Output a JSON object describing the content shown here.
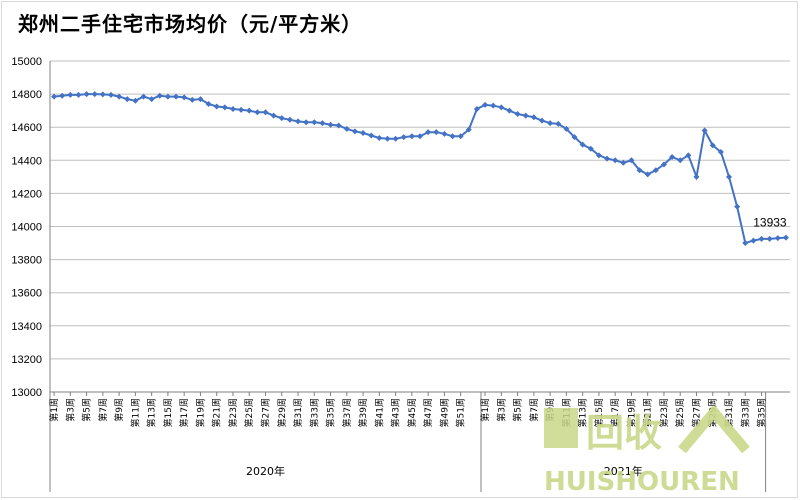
{
  "chart_data": {
    "type": "line",
    "title": "郑州二手住宅市场均价（元/平方米）",
    "ylim": [
      13000,
      15000
    ],
    "yticks": [
      13000,
      13200,
      13400,
      13600,
      13800,
      14000,
      14200,
      14400,
      14600,
      14800,
      15000
    ],
    "grid": true,
    "legend": "none",
    "groups": [
      {
        "label": "2020年",
        "start": 0,
        "end": 52
      },
      {
        "label": "2021年",
        "start": 53,
        "end": 87
      }
    ],
    "x_tick_labels": [
      "第1周",
      "第3周",
      "第5周",
      "第7周",
      "第9周",
      "第11周",
      "第13周",
      "第15周",
      "第17周",
      "第19周",
      "第21周",
      "第23周",
      "第25周",
      "第27周",
      "第29周",
      "第31周",
      "第33周",
      "第35周",
      "第37周",
      "第39周",
      "第41周",
      "第43周",
      "第45周",
      "第47周",
      "第49周",
      "第51周",
      "第1周",
      "第3周",
      "第5周",
      "第7周",
      "第9周",
      "第11周",
      "第13周",
      "第15周",
      "第17周",
      "第19周",
      "第21周",
      "第23周",
      "第25周",
      "第27周",
      "第29周",
      "第31周",
      "第33周",
      "第35周"
    ],
    "x_tick_index": [
      0,
      2,
      4,
      6,
      8,
      10,
      12,
      14,
      16,
      18,
      20,
      22,
      24,
      26,
      28,
      30,
      32,
      34,
      36,
      38,
      40,
      42,
      44,
      46,
      48,
      50,
      53,
      55,
      57,
      59,
      61,
      63,
      65,
      67,
      69,
      71,
      73,
      75,
      77,
      79,
      81,
      83,
      85,
      87
    ],
    "series": [
      {
        "color": "#4472c4",
        "values": [
          14785,
          14790,
          14795,
          14795,
          14800,
          14800,
          14798,
          14795,
          14785,
          14770,
          14760,
          14785,
          14770,
          14790,
          14785,
          14785,
          14780,
          14765,
          14770,
          14740,
          14725,
          14720,
          14710,
          14705,
          14700,
          14690,
          14690,
          14670,
          14655,
          14645,
          14635,
          14630,
          14630,
          14625,
          14615,
          14610,
          14590,
          14575,
          14565,
          14550,
          14535,
          14530,
          14530,
          14540,
          14545,
          14545,
          14570,
          14570,
          14560,
          14545,
          14545,
          14585,
          14710,
          14735,
          14730,
          14720,
          14700,
          14680,
          14670,
          14660,
          14640,
          14625,
          14620,
          14590,
          14540,
          14495,
          14470,
          14430,
          14410,
          14400,
          14385,
          14400,
          14340,
          14315,
          14340,
          14375,
          14420,
          14400,
          14430,
          14300,
          14580,
          14490,
          14450,
          14300,
          14120,
          13900,
          13915,
          13925,
          13925,
          13930,
          13933
        ]
      }
    ],
    "data_labels": [
      {
        "index": 90,
        "text": "13933"
      }
    ]
  },
  "watermark": {
    "top_text": "回收",
    "bottom_text": "HUISHOUREN"
  }
}
